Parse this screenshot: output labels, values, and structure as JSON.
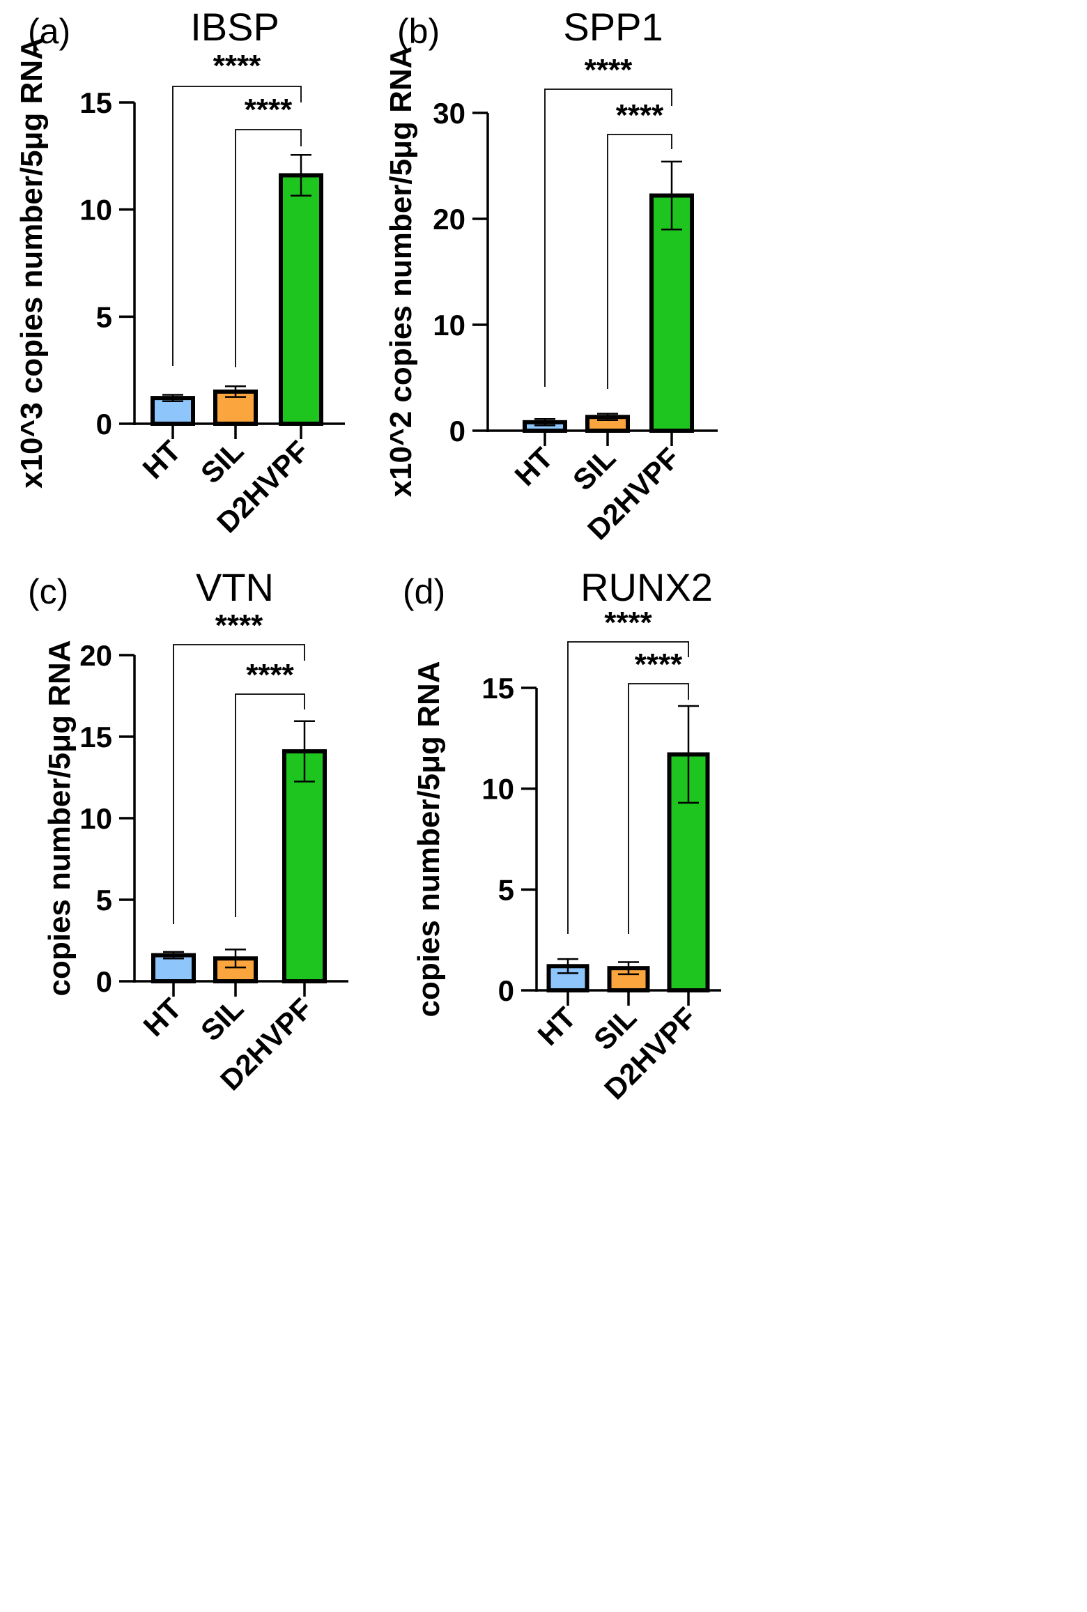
{
  "figure": {
    "panels": [
      "(a)",
      "(b)",
      "(c)",
      "(d)"
    ]
  },
  "chart_data": [
    {
      "panel": "(a)",
      "type": "bar",
      "title": "IBSP",
      "ylabel": "x10^3 copies number/5μg RNA",
      "xlabel": "",
      "categories": [
        "HT",
        "SIL",
        "D2HVPF"
      ],
      "values": [
        1.2,
        1.5,
        11.6
      ],
      "errors": [
        0.15,
        0.25,
        0.95
      ],
      "colors": [
        "#8EC5FB",
        "#FBA53E",
        "#1FC51F"
      ],
      "ylim": [
        0,
        15
      ],
      "yticks": [
        "0",
        "5",
        "10",
        "15"
      ],
      "ytick_values": [
        0,
        5,
        10,
        15
      ],
      "significance": [
        {
          "from": "HT",
          "to": "D2HVPF",
          "label": "****"
        },
        {
          "from": "SIL",
          "to": "D2HVPF",
          "label": "****"
        }
      ]
    },
    {
      "panel": "(b)",
      "type": "bar",
      "title": "SPP1",
      "ylabel": "x10^2 copies number/5μg RNA",
      "xlabel": "",
      "categories": [
        "HT",
        "SIL",
        "D2HVPF"
      ],
      "values": [
        0.8,
        1.3,
        22.2
      ],
      "errors": [
        0.3,
        0.3,
        3.2
      ],
      "colors": [
        "#8EC5FB",
        "#FBA53E",
        "#1FC51F"
      ],
      "ylim": [
        0,
        30
      ],
      "yticks": [
        "0",
        "10",
        "20",
        "30"
      ],
      "ytick_values": [
        0,
        10,
        20,
        30
      ],
      "significance": [
        {
          "from": "HT",
          "to": "D2HVPF",
          "label": "****"
        },
        {
          "from": "SIL",
          "to": "D2HVPF",
          "label": "****"
        }
      ]
    },
    {
      "panel": "(c)",
      "type": "bar",
      "title": "VTN",
      "ylabel": "copies number/5μg RNA",
      "xlabel": "",
      "categories": [
        "HT",
        "SIL",
        "D2HVPF"
      ],
      "values": [
        1.6,
        1.4,
        14.1
      ],
      "errors": [
        0.2,
        0.55,
        1.85
      ],
      "colors": [
        "#8EC5FB",
        "#FBA53E",
        "#1FC51F"
      ],
      "ylim": [
        0,
        20
      ],
      "yticks": [
        "0",
        "5",
        "10",
        "15",
        "20"
      ],
      "ytick_values": [
        0,
        5,
        10,
        15,
        20
      ],
      "significance": [
        {
          "from": "HT",
          "to": "D2HVPF",
          "label": "****"
        },
        {
          "from": "SIL",
          "to": "D2HVPF",
          "label": "****"
        }
      ]
    },
    {
      "panel": "(d)",
      "type": "bar",
      "title": "RUNX2",
      "ylabel": "copies number/5μg RNA",
      "xlabel": "",
      "categories": [
        "HT",
        "SIL",
        "D2HVPF"
      ],
      "values": [
        1.2,
        1.1,
        11.7
      ],
      "errors": [
        0.35,
        0.3,
        2.4
      ],
      "colors": [
        "#8EC5FB",
        "#FBA53E",
        "#1FC51F"
      ],
      "ylim": [
        0,
        15
      ],
      "yticks": [
        "0",
        "5",
        "10",
        "15"
      ],
      "ytick_values": [
        0,
        5,
        10,
        15
      ],
      "significance": [
        {
          "from": "HT",
          "to": "D2HVPF",
          "label": "****"
        },
        {
          "from": "SIL",
          "to": "D2HVPF",
          "label": "****"
        }
      ]
    }
  ]
}
